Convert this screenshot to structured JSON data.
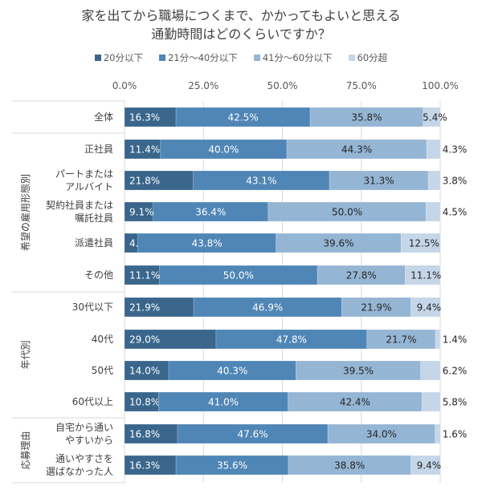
{
  "chart_data": {
    "type": "bar",
    "orientation": "horizontal",
    "stacked": true,
    "title": [
      "家を出てから職場につくまで、かかってもよいと思える",
      "通勤時間はどのくらいですか？"
    ],
    "xlabel": "",
    "ylabel": "",
    "xlim": [
      0,
      100
    ],
    "x_ticks": [
      "0.0%",
      "25.0%",
      "50.0%",
      "75.0%",
      "100.0%"
    ],
    "grid": true,
    "legend_position": "top",
    "series": [
      {
        "name": "20分以下",
        "color": "#3a668c",
        "label_color": "#ffffff",
        "values": [
          16.3,
          11.4,
          21.8,
          9.1,
          4.2,
          11.1,
          21.9,
          29.0,
          14.0,
          10.8,
          16.8,
          16.3
        ]
      },
      {
        "name": "21分～40分以下",
        "color": "#4f86b6",
        "label_color": "#ffffff",
        "values": [
          42.5,
          40.0,
          43.1,
          36.4,
          43.8,
          50.0,
          46.9,
          47.8,
          40.3,
          41.0,
          47.6,
          35.6
        ]
      },
      {
        "name": "41分～60分以下",
        "color": "#95b5d4",
        "label_color": "#262626",
        "values": [
          35.8,
          44.3,
          31.3,
          50.0,
          39.6,
          27.8,
          21.9,
          21.7,
          39.5,
          42.4,
          34.0,
          38.8
        ]
      },
      {
        "name": "60分超",
        "color": "#c4d6e8",
        "label_color": "#262626",
        "values": [
          5.4,
          4.3,
          3.8,
          4.5,
          12.5,
          11.1,
          9.4,
          1.4,
          6.2,
          5.8,
          1.6,
          9.4
        ]
      }
    ],
    "categories": [
      [
        "全体"
      ],
      [
        "正社員"
      ],
      [
        "パートまたは",
        "アルバイト"
      ],
      [
        "契約社員または",
        "嘱託社員"
      ],
      [
        "派遣社員"
      ],
      [
        "その他"
      ],
      [
        "30代以下"
      ],
      [
        "40代"
      ],
      [
        "50代"
      ],
      [
        "60代以上"
      ],
      [
        "自宅から通い",
        "やすいから"
      ],
      [
        "通いやすさを",
        "選ばなかった人"
      ]
    ],
    "groups": [
      {
        "label": "",
        "rows": [
          0
        ]
      },
      {
        "label": "希望の雇用形態別",
        "rows": [
          1,
          2,
          3,
          4,
          5
        ]
      },
      {
        "label": "年代別",
        "rows": [
          6,
          7,
          8,
          9
        ]
      },
      {
        "label": "応募理由",
        "rows": [
          10,
          11
        ]
      }
    ],
    "outside_label_rows_last_series": [
      1,
      2,
      3,
      7,
      8,
      9,
      10
    ]
  }
}
